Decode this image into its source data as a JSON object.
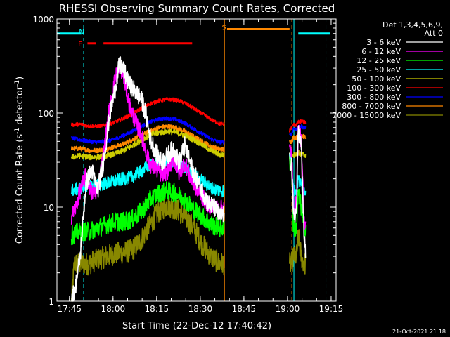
{
  "chart_data": {
    "type": "line",
    "title": "RHESSI Observing Summary Count Rates, Corrected",
    "xlabel": "Start Time (22-Dec-12 17:40:42)",
    "ylabel": "Corrected Count Rate (s⁻¹ detector⁻¹)",
    "ylabel_main": "Corrected Count Rate (s",
    "ylabel_sup1": "-1",
    "ylabel_mid": " detector",
    "ylabel_sup2": "-1",
    "ylabel_end": ")",
    "y_scale": "log",
    "ylim": [
      1,
      1000
    ],
    "xlim_minutes_after_17_40_42": [
      0,
      96
    ],
    "x_ticks": [
      {
        "label": "17:45",
        "min": 4.3
      },
      {
        "label": "18:00",
        "min": 19.3
      },
      {
        "label": "18:15",
        "min": 34.3
      },
      {
        "label": "18:30",
        "min": 49.3
      },
      {
        "label": "18:45",
        "min": 64.3
      },
      {
        "label": "19:00",
        "min": 79.3
      },
      {
        "label": "19:15",
        "min": 94.3
      }
    ],
    "y_ticks": [
      {
        "label": "1",
        "value": 1
      },
      {
        "label": "10",
        "value": 10
      },
      {
        "label": "100",
        "value": 100
      },
      {
        "label": "1000",
        "value": 1000
      }
    ],
    "legend_header": [
      "Det 1,3,4,5,6,9,",
      "Att 0"
    ],
    "legend_placement": "right",
    "series": [
      {
        "name": "3 - 6 keV",
        "color": "#ffffff",
        "points": [
          [
            5,
            1
          ],
          [
            6.5,
            1.5
          ],
          [
            8,
            3
          ],
          [
            10,
            18
          ],
          [
            12,
            25
          ],
          [
            14,
            15
          ],
          [
            16,
            30
          ],
          [
            18,
            90
          ],
          [
            20,
            180
          ],
          [
            21.5,
            330
          ],
          [
            23,
            280
          ],
          [
            25,
            200
          ],
          [
            27,
            170
          ],
          [
            29,
            140
          ],
          [
            30.5,
            100
          ],
          [
            32,
            55
          ],
          [
            34,
            38
          ],
          [
            36,
            30
          ],
          [
            38,
            35
          ],
          [
            40,
            42
          ],
          [
            42,
            30
          ],
          [
            44,
            45
          ],
          [
            46,
            28
          ],
          [
            48,
            20
          ],
          [
            50,
            15
          ],
          [
            52,
            11
          ],
          [
            54,
            10
          ],
          [
            56,
            8
          ],
          [
            57.5,
            8.5
          ]
        ],
        "points2": [
          [
            80,
            30
          ],
          [
            80.7,
            30
          ],
          [
            81.3,
            8
          ],
          [
            82.4,
            9
          ],
          [
            83,
            70
          ],
          [
            84,
            45
          ],
          [
            85,
            5
          ],
          [
            85.5,
            3
          ]
        ]
      },
      {
        "name": "6 - 12 keV",
        "color": "#ff00ff",
        "points": [
          [
            5,
            8
          ],
          [
            6.5,
            10
          ],
          [
            8,
            15
          ],
          [
            10,
            22
          ],
          [
            12,
            14
          ],
          [
            14,
            15
          ],
          [
            16,
            35
          ],
          [
            18,
            110
          ],
          [
            20,
            230
          ],
          [
            21.5,
            330
          ],
          [
            23,
            240
          ],
          [
            25,
            120
          ],
          [
            27,
            80
          ],
          [
            29,
            60
          ],
          [
            30.5,
            40
          ],
          [
            32,
            28
          ],
          [
            34,
            26
          ],
          [
            36,
            22
          ],
          [
            38,
            24
          ],
          [
            40,
            33
          ],
          [
            42,
            23
          ],
          [
            44,
            30
          ],
          [
            46,
            20
          ],
          [
            48,
            16
          ],
          [
            50,
            13
          ],
          [
            52,
            10.5
          ],
          [
            54,
            10
          ],
          [
            56,
            9.5
          ],
          [
            57.5,
            10
          ]
        ],
        "points2": [
          [
            80,
            40
          ],
          [
            80.7,
            40
          ],
          [
            81.3,
            10
          ],
          [
            82.4,
            11
          ],
          [
            83,
            70
          ],
          [
            84,
            50
          ],
          [
            85,
            7
          ],
          [
            85.5,
            7
          ]
        ]
      },
      {
        "name": "12 - 25 keV",
        "color": "#00ff00",
        "points": [
          [
            5,
            5
          ],
          [
            8,
            5.5
          ],
          [
            11,
            5.5
          ],
          [
            14,
            6
          ],
          [
            17,
            6.5
          ],
          [
            20,
            7
          ],
          [
            23,
            7
          ],
          [
            26,
            7.5
          ],
          [
            29,
            9
          ],
          [
            32,
            12
          ],
          [
            35,
            14
          ],
          [
            38,
            15
          ],
          [
            41,
            14
          ],
          [
            44,
            12
          ],
          [
            47,
            9.5
          ],
          [
            50,
            8
          ],
          [
            53,
            6.5
          ],
          [
            56,
            6
          ],
          [
            57.5,
            6
          ]
        ],
        "points2": [
          [
            80,
            30
          ],
          [
            80.7,
            30
          ],
          [
            81.3,
            6
          ],
          [
            82.4,
            6
          ],
          [
            83,
            14
          ],
          [
            84,
            10
          ],
          [
            85,
            6
          ],
          [
            85.5,
            6
          ]
        ]
      },
      {
        "name": "25 - 50 keV",
        "color": "#00ffff",
        "points": [
          [
            5,
            15
          ],
          [
            8,
            16
          ],
          [
            11,
            17
          ],
          [
            14,
            17
          ],
          [
            17,
            18
          ],
          [
            20,
            19
          ],
          [
            23,
            20
          ],
          [
            26,
            21
          ],
          [
            29,
            24
          ],
          [
            32,
            28
          ],
          [
            35,
            30
          ],
          [
            38,
            30
          ],
          [
            41,
            28
          ],
          [
            44,
            26
          ],
          [
            47,
            22
          ],
          [
            50,
            19
          ],
          [
            53,
            16
          ],
          [
            56,
            15
          ],
          [
            57.5,
            15
          ]
        ],
        "points2": [
          [
            80,
            35
          ],
          [
            80.7,
            35
          ],
          [
            81.3,
            15
          ],
          [
            82.4,
            15
          ],
          [
            83,
            20
          ],
          [
            84,
            17
          ],
          [
            85,
            15
          ],
          [
            85.5,
            15
          ]
        ]
      },
      {
        "name": "50 - 100 keV",
        "color": "#cccc00",
        "points": [
          [
            5,
            34
          ],
          [
            8,
            35
          ],
          [
            11,
            34
          ],
          [
            14,
            34
          ],
          [
            17,
            35
          ],
          [
            20,
            37
          ],
          [
            23,
            40
          ],
          [
            26,
            45
          ],
          [
            29,
            52
          ],
          [
            32,
            58
          ],
          [
            35,
            62
          ],
          [
            38,
            64
          ],
          [
            41,
            62
          ],
          [
            44,
            58
          ],
          [
            47,
            52
          ],
          [
            50,
            46
          ],
          [
            53,
            40
          ],
          [
            56,
            36
          ],
          [
            57.5,
            36
          ]
        ],
        "points2": [
          [
            80,
            38
          ],
          [
            80.7,
            38
          ],
          [
            81.3,
            36
          ],
          [
            82.4,
            36
          ],
          [
            83,
            38
          ],
          [
            84,
            36
          ],
          [
            85,
            36
          ],
          [
            85.5,
            36
          ]
        ]
      },
      {
        "name": "100 - 300 keV",
        "color": "#ff0000",
        "points": [
          [
            5,
            75
          ],
          [
            8,
            76
          ],
          [
            11,
            73
          ],
          [
            14,
            72
          ],
          [
            17,
            75
          ],
          [
            20,
            80
          ],
          [
            23,
            88
          ],
          [
            26,
            98
          ],
          [
            29,
            112
          ],
          [
            32,
            125
          ],
          [
            35,
            135
          ],
          [
            38,
            140
          ],
          [
            41,
            138
          ],
          [
            44,
            128
          ],
          [
            47,
            112
          ],
          [
            50,
            98
          ],
          [
            53,
            85
          ],
          [
            56,
            77
          ],
          [
            57.5,
            76
          ]
        ],
        "points2": [
          [
            80,
            65
          ],
          [
            80.7,
            70
          ],
          [
            81.3,
            75
          ],
          [
            82.4,
            75
          ],
          [
            83,
            80
          ],
          [
            84,
            82
          ],
          [
            85,
            80
          ],
          [
            85.5,
            80
          ]
        ]
      },
      {
        "name": "300 - 800 keV",
        "color": "#0000ff",
        "points": [
          [
            5,
            54
          ],
          [
            8,
            52
          ],
          [
            11,
            50
          ],
          [
            14,
            49
          ],
          [
            17,
            50
          ],
          [
            20,
            53
          ],
          [
            23,
            58
          ],
          [
            26,
            64
          ],
          [
            29,
            72
          ],
          [
            32,
            80
          ],
          [
            35,
            86
          ],
          [
            38,
            88
          ],
          [
            41,
            85
          ],
          [
            44,
            78
          ],
          [
            47,
            68
          ],
          [
            50,
            60
          ],
          [
            53,
            53
          ],
          [
            56,
            49
          ],
          [
            57.5,
            49
          ]
        ],
        "points2": [
          [
            80,
            60
          ],
          [
            80.7,
            60
          ],
          [
            81.3,
            68
          ],
          [
            82.4,
            68
          ],
          [
            83,
            70
          ],
          [
            84,
            72
          ],
          [
            85,
            70
          ],
          [
            85.5,
            70
          ]
        ]
      },
      {
        "name": "800 - 7000 keV",
        "color": "#ff8800",
        "points": [
          [
            5,
            42
          ],
          [
            8,
            42
          ],
          [
            11,
            40
          ],
          [
            14,
            40
          ],
          [
            17,
            41
          ],
          [
            20,
            44
          ],
          [
            23,
            47
          ],
          [
            26,
            52
          ],
          [
            29,
            58
          ],
          [
            32,
            64
          ],
          [
            35,
            70
          ],
          [
            38,
            72
          ],
          [
            41,
            70
          ],
          [
            44,
            64
          ],
          [
            47,
            56
          ],
          [
            50,
            50
          ],
          [
            53,
            44
          ],
          [
            56,
            41
          ],
          [
            57.5,
            41
          ]
        ],
        "points2": [
          [
            80,
            50
          ],
          [
            80.7,
            50
          ],
          [
            81.3,
            55
          ],
          [
            82.4,
            55
          ],
          [
            83,
            58
          ],
          [
            84,
            58
          ],
          [
            85,
            56
          ],
          [
            85.5,
            56
          ]
        ]
      },
      {
        "name": "7000 - 15000 keV",
        "color": "#888800",
        "points": [
          [
            5,
            1
          ],
          [
            6,
            2.5
          ],
          [
            8,
            2.5
          ],
          [
            11,
            2.5
          ],
          [
            14,
            2.8
          ],
          [
            17,
            3
          ],
          [
            20,
            3.2
          ],
          [
            23,
            3.3
          ],
          [
            26,
            3.5
          ],
          [
            29,
            4.5
          ],
          [
            32,
            6.5
          ],
          [
            35,
            9
          ],
          [
            38,
            10.5
          ],
          [
            41,
            9.5
          ],
          [
            44,
            8
          ],
          [
            47,
            6
          ],
          [
            50,
            4
          ],
          [
            53,
            3
          ],
          [
            56,
            2.5
          ],
          [
            57.5,
            2.5
          ]
        ],
        "points2": [
          [
            80,
            2.5
          ],
          [
            80.7,
            2.5
          ],
          [
            81.3,
            3
          ],
          [
            82.4,
            3
          ],
          [
            83,
            5
          ],
          [
            84,
            3
          ],
          [
            85,
            2.5
          ],
          [
            85.5,
            2.5
          ]
        ]
      }
    ],
    "annotations": {
      "flags": [
        {
          "label": "N",
          "color": "#00ffff",
          "min": 8.5
        },
        {
          "label": "F",
          "color": "#ff0000",
          "min": 8.0
        },
        {
          "label": "S",
          "color": "#ff8800",
          "min": 57.5
        }
      ],
      "bars": [
        {
          "color": "#00ffff",
          "from": 0,
          "to": 8.4,
          "value": 700
        },
        {
          "color": "#ff0000",
          "from": 10.5,
          "to": 13.5,
          "value": 550
        },
        {
          "color": "#ff0000",
          "from": 16,
          "to": 46.5,
          "value": 550
        },
        {
          "color": "#ff8800",
          "from": 58.5,
          "to": 80,
          "value": 780
        },
        {
          "color": "#00ffff",
          "from": 83,
          "to": 94,
          "value": 700
        }
      ],
      "vlines": [
        {
          "color": "#00ffff",
          "min": 9.2,
          "dashed": true
        },
        {
          "color": "#ff8800",
          "min": 57.6,
          "dashed": false
        },
        {
          "color": "#ff8800",
          "min": 80.8,
          "dashed": true
        },
        {
          "color": "#00ffff",
          "min": 81.5,
          "dashed": false
        },
        {
          "color": "#00ffff",
          "min": 92.5,
          "dashed": true
        }
      ]
    },
    "timestamp": "21-Oct-2021 21:18"
  }
}
